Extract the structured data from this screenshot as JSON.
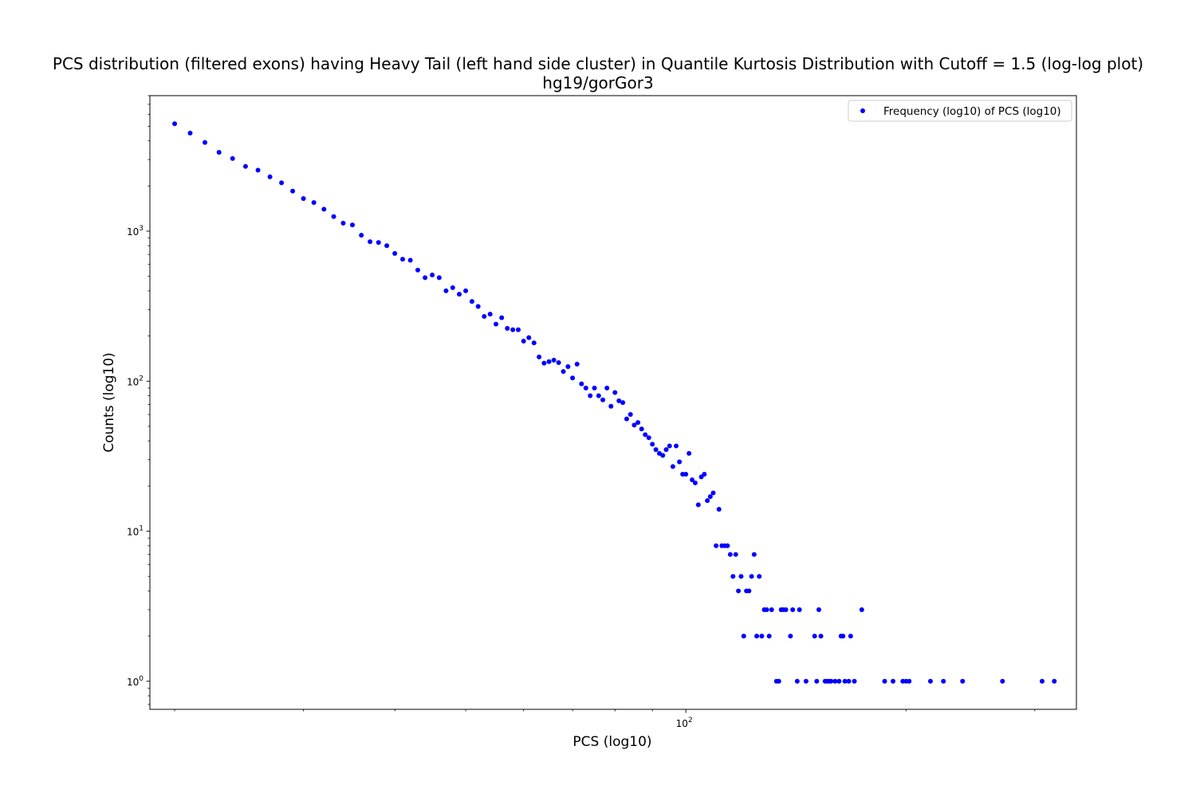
{
  "chart_data": {
    "type": "scatter",
    "title": "PCS distribution (filtered exons) having Heavy Tail (left hand side cluster) in Quantile Kurtosis Distribution with Cutoff = 1.5 (log-log plot)",
    "subtitle": "hg19/gorGor3",
    "xlabel": "PCS (log10)",
    "ylabel": "Counts (log10)",
    "xscale": "log",
    "yscale": "log",
    "xlim": [
      18.5,
      342
    ],
    "ylim": [
      0.65,
      8000
    ],
    "x_tick_labels": [
      "10^2"
    ],
    "y_tick_labels": [
      "10^0",
      "10^1",
      "10^2",
      "10^3"
    ],
    "grid": false,
    "legend": {
      "position": "top-right",
      "label": "Frequency (log10) of PCS (log10)"
    },
    "colors": {
      "series": "#0000ff",
      "axes": "#000000"
    },
    "series": [
      {
        "name": "Frequency (log10) of PCS (log10)",
        "points": [
          [
            20,
            5200
          ],
          [
            21,
            4500
          ],
          [
            22,
            3900
          ],
          [
            23,
            3350
          ],
          [
            24,
            3050
          ],
          [
            25,
            2700
          ],
          [
            26,
            2550
          ],
          [
            27,
            2300
          ],
          [
            28,
            2100
          ],
          [
            29,
            1850
          ],
          [
            30,
            1650
          ],
          [
            31,
            1550
          ],
          [
            32,
            1400
          ],
          [
            33,
            1250
          ],
          [
            34,
            1130
          ],
          [
            35,
            1100
          ],
          [
            36,
            940
          ],
          [
            37,
            850
          ],
          [
            38,
            840
          ],
          [
            39,
            800
          ],
          [
            40,
            710
          ],
          [
            41,
            650
          ],
          [
            42,
            640
          ],
          [
            43,
            550
          ],
          [
            44,
            490
          ],
          [
            45,
            510
          ],
          [
            46,
            490
          ],
          [
            47,
            400
          ],
          [
            48,
            420
          ],
          [
            49,
            380
          ],
          [
            50,
            400
          ],
          [
            51,
            340
          ],
          [
            52,
            315
          ],
          [
            53,
            270
          ],
          [
            54,
            280
          ],
          [
            55,
            240
          ],
          [
            56,
            265
          ],
          [
            57,
            225
          ],
          [
            58,
            220
          ],
          [
            59,
            220
          ],
          [
            60,
            185
          ],
          [
            61,
            195
          ],
          [
            62,
            180
          ],
          [
            63,
            145
          ],
          [
            64,
            132
          ],
          [
            65,
            135
          ],
          [
            66,
            138
          ],
          [
            67,
            133
          ],
          [
            68,
            116
          ],
          [
            69,
            125
          ],
          [
            70,
            105
          ],
          [
            71,
            130
          ],
          [
            72,
            96
          ],
          [
            73,
            90
          ],
          [
            74,
            80
          ],
          [
            75,
            90
          ],
          [
            76,
            80
          ],
          [
            77,
            75
          ],
          [
            78,
            90
          ],
          [
            79,
            68
          ],
          [
            80,
            84
          ],
          [
            81,
            74
          ],
          [
            82,
            72
          ],
          [
            83,
            56
          ],
          [
            84,
            60
          ],
          [
            85,
            51
          ],
          [
            86,
            53
          ],
          [
            87,
            48
          ],
          [
            88,
            44
          ],
          [
            89,
            42
          ],
          [
            90,
            38
          ],
          [
            91,
            35
          ],
          [
            92,
            33
          ],
          [
            93,
            32
          ],
          [
            94,
            35
          ],
          [
            95,
            37
          ],
          [
            96,
            27
          ],
          [
            97,
            37
          ],
          [
            98,
            29
          ],
          [
            99,
            24
          ],
          [
            100,
            24
          ],
          [
            101,
            33
          ],
          [
            102,
            22
          ],
          [
            103,
            21
          ],
          [
            104,
            15
          ],
          [
            105,
            23
          ],
          [
            106,
            24
          ],
          [
            107,
            16
          ],
          [
            108,
            17
          ],
          [
            109,
            18
          ],
          [
            111,
            14
          ],
          [
            110,
            8
          ],
          [
            112,
            8
          ],
          [
            113,
            8
          ],
          [
            114,
            8
          ],
          [
            115,
            7
          ],
          [
            116,
            5
          ],
          [
            117,
            7
          ],
          [
            118,
            4
          ],
          [
            119,
            5
          ],
          [
            120,
            2
          ],
          [
            121,
            4
          ],
          [
            122,
            4
          ],
          [
            123,
            5
          ],
          [
            124,
            7
          ],
          [
            125,
            2
          ],
          [
            126,
            5
          ],
          [
            127,
            2
          ],
          [
            128,
            3
          ],
          [
            129,
            3
          ],
          [
            130,
            2
          ],
          [
            131,
            3
          ],
          [
            133,
            1
          ],
          [
            134,
            1
          ],
          [
            135,
            3
          ],
          [
            136,
            3
          ],
          [
            137,
            3
          ],
          [
            139,
            2
          ],
          [
            140,
            3
          ],
          [
            142,
            1
          ],
          [
            143,
            3
          ],
          [
            146,
            1
          ],
          [
            150,
            2
          ],
          [
            151,
            1
          ],
          [
            152,
            3
          ],
          [
            153,
            2
          ],
          [
            155,
            1
          ],
          [
            156,
            1
          ],
          [
            157,
            1
          ],
          [
            158,
            1
          ],
          [
            160,
            1
          ],
          [
            162,
            1
          ],
          [
            163,
            2
          ],
          [
            164,
            2
          ],
          [
            165,
            1
          ],
          [
            167,
            1
          ],
          [
            168,
            2
          ],
          [
            170,
            1
          ],
          [
            174,
            3
          ],
          [
            187,
            1
          ],
          [
            192,
            1
          ],
          [
            198,
            1
          ],
          [
            200,
            1
          ],
          [
            202,
            1
          ],
          [
            216,
            1
          ],
          [
            225,
            1
          ],
          [
            239,
            1
          ],
          [
            271,
            1
          ],
          [
            307,
            1
          ],
          [
            319,
            1
          ]
        ]
      }
    ]
  }
}
